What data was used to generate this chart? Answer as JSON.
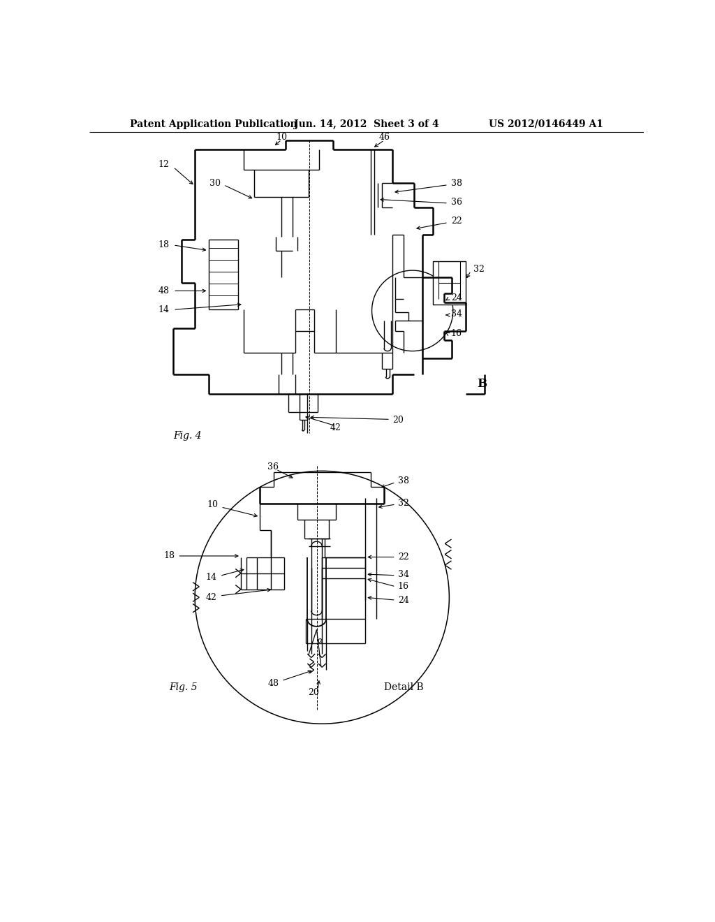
{
  "background_color": "#ffffff",
  "header_left": "Patent Application Publication",
  "header_center": "Jun. 14, 2012  Sheet 3 of 4",
  "header_right": "US 2012/0146449 A1",
  "fig4_label": "Fig. 4",
  "fig5_label": "Fig. 5",
  "detail_b_label": "Detail B",
  "line_color": "#000000",
  "lw": 1.0,
  "tlw": 1.8,
  "font_size_header": 10,
  "font_size_label": 10,
  "font_size_ref": 9
}
